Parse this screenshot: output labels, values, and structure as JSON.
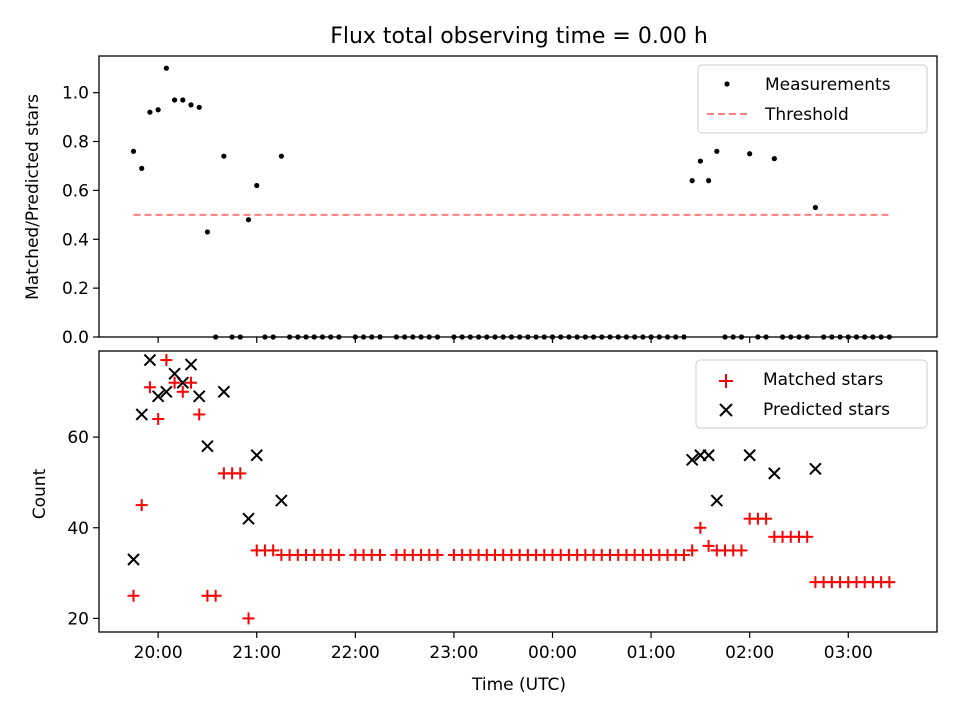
{
  "chart_data": [
    {
      "type": "scatter",
      "title": "Flux total observing time = 0.00 h",
      "xlabel": "",
      "ylabel": "Matched/Predicted stars",
      "ylim": [
        0,
        1.15
      ],
      "xlim": [
        "19:24",
        "03:54"
      ],
      "y_ticks": [
        "0.0",
        "0.2",
        "0.4",
        "0.6",
        "0.8",
        "1.0"
      ],
      "legend_position": "top-right",
      "series": [
        {
          "name": "Measurements",
          "marker": "dot",
          "color": "#000000",
          "points": [
            [
              "19:45",
              0.76
            ],
            [
              "19:50",
              0.69
            ],
            [
              "19:55",
              0.92
            ],
            [
              "20:00",
              0.93
            ],
            [
              "20:05",
              1.1
            ],
            [
              "20:10",
              0.97
            ],
            [
              "20:15",
              0.97
            ],
            [
              "20:20",
              0.95
            ],
            [
              "20:25",
              0.94
            ],
            [
              "20:30",
              0.43
            ],
            [
              "20:35",
              0.0
            ],
            [
              "20:40",
              0.74
            ],
            [
              "20:45",
              0.0
            ],
            [
              "20:50",
              0.0
            ],
            [
              "20:55",
              0.48
            ],
            [
              "21:00",
              0.62
            ],
            [
              "21:05",
              0.0
            ],
            [
              "21:10",
              0.0
            ],
            [
              "21:15",
              0.74
            ],
            [
              "21:20",
              0.0
            ],
            [
              "21:25",
              0.0
            ],
            [
              "21:30",
              0.0
            ],
            [
              "21:35",
              0.0
            ],
            [
              "21:40",
              0.0
            ],
            [
              "21:45",
              0.0
            ],
            [
              "21:50",
              0.0
            ],
            [
              "22:00",
              0.0
            ],
            [
              "22:05",
              0.0
            ],
            [
              "22:10",
              0.0
            ],
            [
              "22:15",
              0.0
            ],
            [
              "22:25",
              0.0
            ],
            [
              "22:30",
              0.0
            ],
            [
              "22:35",
              0.0
            ],
            [
              "22:40",
              0.0
            ],
            [
              "22:45",
              0.0
            ],
            [
              "22:50",
              0.0
            ],
            [
              "23:00",
              0.0
            ],
            [
              "23:05",
              0.0
            ],
            [
              "23:10",
              0.0
            ],
            [
              "23:15",
              0.0
            ],
            [
              "23:20",
              0.0
            ],
            [
              "23:25",
              0.0
            ],
            [
              "23:30",
              0.0
            ],
            [
              "23:35",
              0.0
            ],
            [
              "23:40",
              0.0
            ],
            [
              "23:45",
              0.0
            ],
            [
              "23:50",
              0.0
            ],
            [
              "23:55",
              0.0
            ],
            [
              "00:00",
              0.0
            ],
            [
              "00:05",
              0.0
            ],
            [
              "00:10",
              0.0
            ],
            [
              "00:15",
              0.0
            ],
            [
              "00:20",
              0.0
            ],
            [
              "00:25",
              0.0
            ],
            [
              "00:30",
              0.0
            ],
            [
              "00:35",
              0.0
            ],
            [
              "00:40",
              0.0
            ],
            [
              "00:45",
              0.0
            ],
            [
              "00:50",
              0.0
            ],
            [
              "00:55",
              0.0
            ],
            [
              "01:00",
              0.0
            ],
            [
              "01:05",
              0.0
            ],
            [
              "01:10",
              0.0
            ],
            [
              "01:15",
              0.0
            ],
            [
              "01:20",
              0.0
            ],
            [
              "01:25",
              0.64
            ],
            [
              "01:30",
              0.72
            ],
            [
              "01:35",
              0.64
            ],
            [
              "01:40",
              0.76
            ],
            [
              "01:45",
              0.0
            ],
            [
              "01:50",
              0.0
            ],
            [
              "01:55",
              0.0
            ],
            [
              "02:00",
              0.75
            ],
            [
              "02:05",
              0.0
            ],
            [
              "02:10",
              0.0
            ],
            [
              "02:15",
              0.73
            ],
            [
              "02:20",
              0.0
            ],
            [
              "02:25",
              0.0
            ],
            [
              "02:30",
              0.0
            ],
            [
              "02:35",
              0.0
            ],
            [
              "02:40",
              0.53
            ],
            [
              "02:45",
              0.0
            ],
            [
              "02:50",
              0.0
            ],
            [
              "02:55",
              0.0
            ],
            [
              "03:00",
              0.0
            ],
            [
              "03:05",
              0.0
            ],
            [
              "03:10",
              0.0
            ],
            [
              "03:15",
              0.0
            ],
            [
              "03:20",
              0.0
            ],
            [
              "03:25",
              0.0
            ]
          ]
        },
        {
          "name": "Threshold",
          "marker": "dashed-line",
          "color": "#ff7f7f",
          "points": [
            [
              "19:45",
              0.5
            ],
            [
              "03:25",
              0.5
            ]
          ]
        }
      ]
    },
    {
      "type": "scatter",
      "title": "",
      "xlabel": "Time (UTC)",
      "ylabel": "Count",
      "ylim": [
        17,
        79
      ],
      "xlim": [
        "19:24",
        "03:54"
      ],
      "x_ticks": [
        "20:00",
        "21:00",
        "22:00",
        "23:00",
        "00:00",
        "01:00",
        "02:00",
        "03:00"
      ],
      "y_ticks": [
        "20",
        "40",
        "60"
      ],
      "legend_position": "top-right",
      "series": [
        {
          "name": "Matched stars",
          "marker": "plus",
          "color": "#ff0000",
          "points": [
            [
              "19:45",
              25
            ],
            [
              "19:50",
              45
            ],
            [
              "19:55",
              71
            ],
            [
              "20:00",
              64
            ],
            [
              "20:05",
              77
            ],
            [
              "20:10",
              72
            ],
            [
              "20:15",
              70
            ],
            [
              "20:20",
              72
            ],
            [
              "20:25",
              65
            ],
            [
              "20:30",
              25
            ],
            [
              "20:35",
              25
            ],
            [
              "20:40",
              52
            ],
            [
              "20:45",
              52
            ],
            [
              "20:50",
              52
            ],
            [
              "20:55",
              20
            ],
            [
              "21:00",
              35
            ],
            [
              "21:05",
              35
            ],
            [
              "21:10",
              35
            ],
            [
              "21:15",
              34
            ],
            [
              "21:20",
              34
            ],
            [
              "21:25",
              34
            ],
            [
              "21:30",
              34
            ],
            [
              "21:35",
              34
            ],
            [
              "21:40",
              34
            ],
            [
              "21:45",
              34
            ],
            [
              "21:50",
              34
            ],
            [
              "22:00",
              34
            ],
            [
              "22:05",
              34
            ],
            [
              "22:10",
              34
            ],
            [
              "22:15",
              34
            ],
            [
              "22:25",
              34
            ],
            [
              "22:30",
              34
            ],
            [
              "22:35",
              34
            ],
            [
              "22:40",
              34
            ],
            [
              "22:45",
              34
            ],
            [
              "22:50",
              34
            ],
            [
              "23:00",
              34
            ],
            [
              "23:05",
              34
            ],
            [
              "23:10",
              34
            ],
            [
              "23:15",
              34
            ],
            [
              "23:20",
              34
            ],
            [
              "23:25",
              34
            ],
            [
              "23:30",
              34
            ],
            [
              "23:35",
              34
            ],
            [
              "23:40",
              34
            ],
            [
              "23:45",
              34
            ],
            [
              "23:50",
              34
            ],
            [
              "23:55",
              34
            ],
            [
              "00:00",
              34
            ],
            [
              "00:05",
              34
            ],
            [
              "00:10",
              34
            ],
            [
              "00:15",
              34
            ],
            [
              "00:20",
              34
            ],
            [
              "00:25",
              34
            ],
            [
              "00:30",
              34
            ],
            [
              "00:35",
              34
            ],
            [
              "00:40",
              34
            ],
            [
              "00:45",
              34
            ],
            [
              "00:50",
              34
            ],
            [
              "00:55",
              34
            ],
            [
              "01:00",
              34
            ],
            [
              "01:05",
              34
            ],
            [
              "01:10",
              34
            ],
            [
              "01:15",
              34
            ],
            [
              "01:20",
              34
            ],
            [
              "01:25",
              35
            ],
            [
              "01:30",
              40
            ],
            [
              "01:35",
              36
            ],
            [
              "01:40",
              35
            ],
            [
              "01:45",
              35
            ],
            [
              "01:50",
              35
            ],
            [
              "01:55",
              35
            ],
            [
              "02:00",
              42
            ],
            [
              "02:05",
              42
            ],
            [
              "02:10",
              42
            ],
            [
              "02:15",
              38
            ],
            [
              "02:20",
              38
            ],
            [
              "02:25",
              38
            ],
            [
              "02:30",
              38
            ],
            [
              "02:35",
              38
            ],
            [
              "02:40",
              28
            ],
            [
              "02:45",
              28
            ],
            [
              "02:50",
              28
            ],
            [
              "02:55",
              28
            ],
            [
              "03:00",
              28
            ],
            [
              "03:05",
              28
            ],
            [
              "03:10",
              28
            ],
            [
              "03:15",
              28
            ],
            [
              "03:20",
              28
            ],
            [
              "03:25",
              28
            ]
          ]
        },
        {
          "name": "Predicted stars",
          "marker": "cross",
          "color": "#000000",
          "points": [
            [
              "19:45",
              33
            ],
            [
              "19:50",
              65
            ],
            [
              "19:55",
              77
            ],
            [
              "20:00",
              69
            ],
            [
              "20:05",
              70
            ],
            [
              "20:10",
              74
            ],
            [
              "20:15",
              72
            ],
            [
              "20:20",
              76
            ],
            [
              "20:25",
              69
            ],
            [
              "20:30",
              58
            ],
            [
              "20:40",
              70
            ],
            [
              "20:55",
              42
            ],
            [
              "21:00",
              56
            ],
            [
              "21:15",
              46
            ],
            [
              "01:25",
              55
            ],
            [
              "01:30",
              56
            ],
            [
              "01:35",
              56
            ],
            [
              "01:40",
              46
            ],
            [
              "02:00",
              56
            ],
            [
              "02:15",
              52
            ],
            [
              "02:40",
              53
            ]
          ]
        }
      ]
    }
  ]
}
